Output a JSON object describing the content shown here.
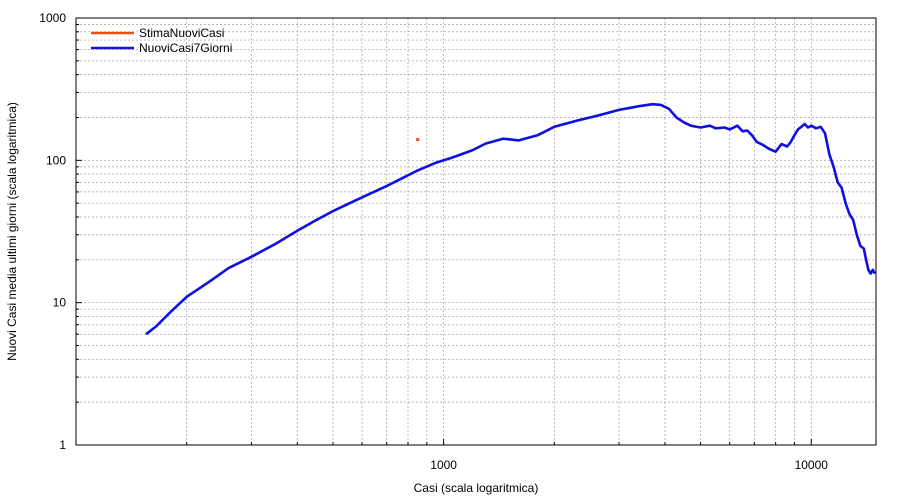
{
  "chart_data": {
    "type": "line",
    "xlabel": "Casi (scala logaritmica)",
    "ylabel": "Nuovi Casi media ultimi giorni (scala logaritmica)",
    "x_scale": "log",
    "y_scale": "log",
    "xlim": [
      100,
      15000
    ],
    "ylim": [
      1,
      1000
    ],
    "x_ticks": [
      {
        "value": 1000,
        "label": "1000"
      },
      {
        "value": 10000,
        "label": "10000"
      }
    ],
    "y_ticks": [
      {
        "value": 1,
        "label": "1"
      },
      {
        "value": 10,
        "label": "10"
      },
      {
        "value": 100,
        "label": "100"
      },
      {
        "value": 1000,
        "label": "1000"
      }
    ],
    "grid": true,
    "legend_position": "top-left",
    "series": [
      {
        "name": "StimaNuoviCasi",
        "color": "#e8501a",
        "style": "point",
        "points": [
          [
            850,
            140
          ]
        ]
      },
      {
        "name": "NuoviCasi7Giorni",
        "color": "#1010e0",
        "style": "line",
        "points": [
          [
            155,
            6
          ],
          [
            165,
            6.8
          ],
          [
            180,
            8.5
          ],
          [
            200,
            11
          ],
          [
            230,
            14
          ],
          [
            260,
            17.5
          ],
          [
            300,
            21
          ],
          [
            350,
            26
          ],
          [
            400,
            32
          ],
          [
            450,
            38
          ],
          [
            500,
            44
          ],
          [
            600,
            55
          ],
          [
            700,
            66
          ],
          [
            780,
            76
          ],
          [
            850,
            85
          ],
          [
            950,
            96
          ],
          [
            1050,
            104
          ],
          [
            1200,
            118
          ],
          [
            1300,
            131
          ],
          [
            1450,
            142
          ],
          [
            1600,
            138
          ],
          [
            1800,
            150
          ],
          [
            2000,
            172
          ],
          [
            2300,
            190
          ],
          [
            2600,
            205
          ],
          [
            3000,
            226
          ],
          [
            3400,
            240
          ],
          [
            3700,
            248
          ],
          [
            3900,
            245
          ],
          [
            4100,
            230
          ],
          [
            4300,
            200
          ],
          [
            4500,
            185
          ],
          [
            4700,
            175
          ],
          [
            5000,
            170
          ],
          [
            5300,
            175
          ],
          [
            5500,
            168
          ],
          [
            5800,
            170
          ],
          [
            6000,
            165
          ],
          [
            6300,
            175
          ],
          [
            6500,
            160
          ],
          [
            6700,
            162
          ],
          [
            6900,
            150
          ],
          [
            7100,
            135
          ],
          [
            7400,
            128
          ],
          [
            7700,
            120
          ],
          [
            8000,
            115
          ],
          [
            8300,
            130
          ],
          [
            8600,
            125
          ],
          [
            8800,
            135
          ],
          [
            9000,
            150
          ],
          [
            9200,
            165
          ],
          [
            9400,
            172
          ],
          [
            9600,
            180
          ],
          [
            9800,
            170
          ],
          [
            10000,
            175
          ],
          [
            10300,
            168
          ],
          [
            10600,
            172
          ],
          [
            10900,
            155
          ],
          [
            11200,
            110
          ],
          [
            11500,
            90
          ],
          [
            11800,
            70
          ],
          [
            12100,
            64
          ],
          [
            12400,
            50
          ],
          [
            12700,
            42
          ],
          [
            13000,
            38
          ],
          [
            13300,
            30
          ],
          [
            13600,
            25
          ],
          [
            13900,
            24
          ],
          [
            14100,
            20
          ],
          [
            14300,
            17
          ],
          [
            14500,
            16
          ],
          [
            14700,
            17
          ],
          [
            14900,
            16
          ]
        ]
      }
    ]
  }
}
